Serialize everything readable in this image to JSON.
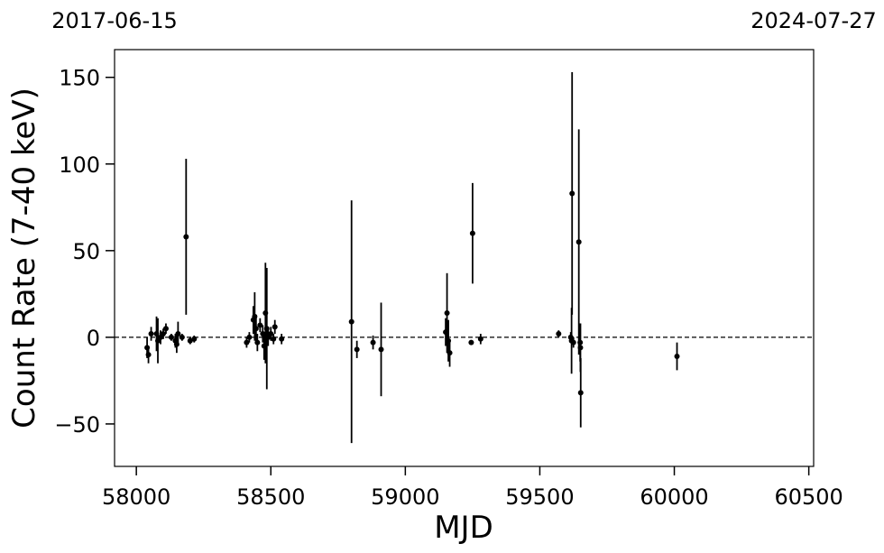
{
  "chart_data": {
    "type": "errorbar",
    "xlabel": "MJD",
    "ylabel": "Count Rate (7-40 keV)",
    "xlim": [
      57919,
      60518
    ],
    "ylim": [
      -74.5,
      166
    ],
    "xticks": [
      58000,
      58500,
      59000,
      59500,
      60000,
      60500
    ],
    "yticks": [
      {
        "value": -50,
        "label": "−50"
      },
      0,
      50,
      100,
      150
    ],
    "x2ticks": [
      {
        "value": 57919,
        "label": "2017-06-15"
      },
      {
        "value": 60518,
        "label": "2024-07-27"
      }
    ],
    "reference_line": 0,
    "color": "#000000",
    "x": [
      58040,
      58045,
      58055,
      58075,
      58080,
      58090,
      58100,
      58110,
      58130,
      58145,
      58150,
      58155,
      58170,
      58185,
      58200,
      58215,
      58410,
      58420,
      58435,
      58440,
      58445,
      58450,
      58460,
      58470,
      58475,
      58480,
      58485,
      58490,
      58500,
      58510,
      58515,
      58540,
      58800,
      58820,
      58880,
      58910,
      59150,
      59155,
      59160,
      59165,
      59245,
      59250,
      59280,
      59570,
      59615,
      59618,
      59620,
      59625,
      59645,
      59650,
      59651,
      59652,
      60010
    ],
    "values": [
      -6,
      -10,
      2,
      2,
      -2,
      0,
      2,
      5,
      0,
      -2,
      -4,
      2,
      0,
      58,
      -2,
      -1,
      -3,
      0,
      10,
      12,
      5,
      -3,
      7,
      2,
      -5,
      14,
      5,
      0,
      2,
      -1,
      6,
      -1,
      9,
      -7,
      -3,
      -7,
      3,
      14,
      -2,
      -9,
      -3,
      60,
      -1,
      2,
      0,
      -2,
      83,
      -3,
      55,
      -3,
      -6,
      -32,
      -11
    ],
    "errors": [
      6,
      5,
      4,
      10,
      13,
      4,
      3,
      3,
      2,
      4,
      5,
      7,
      2,
      45,
      2,
      2,
      3,
      3,
      8,
      14,
      8,
      5,
      4,
      5,
      8,
      29,
      35,
      5,
      4,
      3,
      4,
      3,
      70,
      5,
      4,
      27,
      8,
      23,
      12,
      8,
      1,
      29,
      3,
      2,
      3,
      19,
      70,
      3,
      65,
      11,
      14,
      20,
      8
    ]
  }
}
